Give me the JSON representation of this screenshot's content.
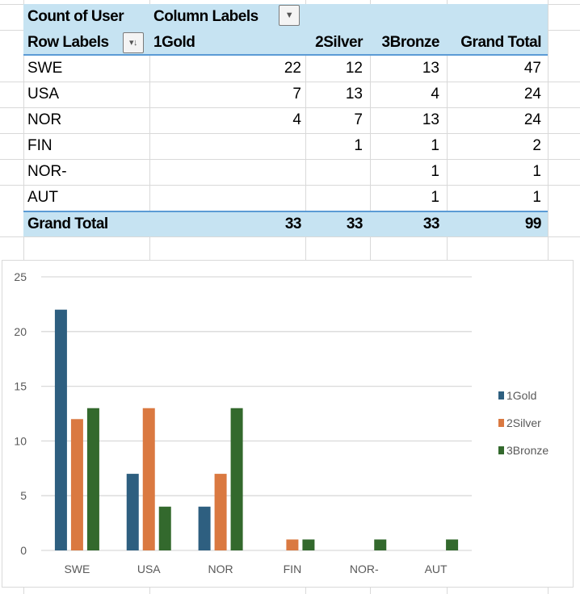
{
  "pivot": {
    "value_field": "Count of User",
    "column_labels": "Column Labels",
    "row_labels": "Row Labels",
    "columns": [
      "1Gold",
      "2Silver",
      "3Bronze",
      "Grand Total"
    ],
    "rows": [
      {
        "label": "SWE",
        "values": [
          "22",
          "12",
          "13",
          "47"
        ]
      },
      {
        "label": "USA",
        "values": [
          "7",
          "13",
          "4",
          "24"
        ]
      },
      {
        "label": "NOR",
        "values": [
          "4",
          "7",
          "13",
          "24"
        ]
      },
      {
        "label": "FIN",
        "values": [
          "",
          "1",
          "1",
          "2"
        ]
      },
      {
        "label": "NOR-",
        "values": [
          "",
          "",
          "1",
          "1"
        ]
      },
      {
        "label": "AUT",
        "values": [
          "",
          "",
          "1",
          "1"
        ]
      }
    ],
    "total": {
      "label": "Grand Total",
      "values": [
        "33",
        "33",
        "33",
        "99"
      ]
    },
    "filter_icon": "dropdown-arrow",
    "sort_icon": "sort-filter"
  },
  "chart_data": {
    "type": "bar",
    "categories": [
      "SWE",
      "USA",
      "NOR",
      "FIN",
      "NOR-",
      "AUT"
    ],
    "series": [
      {
        "name": "1Gold",
        "color": "#2e5f80",
        "values": [
          22,
          7,
          4,
          0,
          0,
          0
        ]
      },
      {
        "name": "2Silver",
        "color": "#da7941",
        "values": [
          12,
          13,
          7,
          1,
          0,
          0
        ]
      },
      {
        "name": "3Bronze",
        "color": "#33692d",
        "values": [
          13,
          4,
          13,
          1,
          1,
          1
        ]
      }
    ],
    "ylim": [
      0,
      25
    ],
    "yticks": [
      0,
      5,
      10,
      15,
      20,
      25
    ],
    "grid": true,
    "legend": "right",
    "title": "",
    "xlabel": "",
    "ylabel": ""
  }
}
